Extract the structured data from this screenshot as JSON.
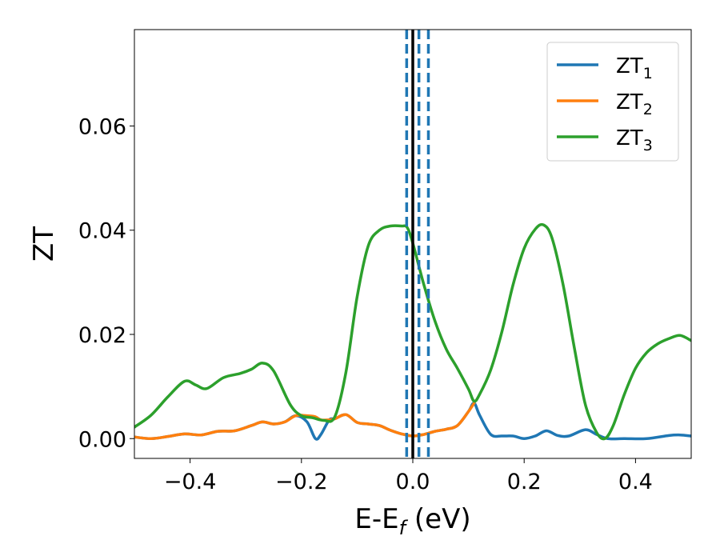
{
  "chart_data": {
    "type": "line",
    "title": "",
    "xlabel": "E-E",
    "xlabel_sub": "f",
    "xlabel_unit": " (eV)",
    "ylabel": "ZT",
    "xlim": [
      -0.5,
      0.5
    ],
    "ylim": [
      -0.0038,
      0.0785
    ],
    "xticks": [
      -0.4,
      -0.2,
      0.0,
      0.2,
      0.4
    ],
    "xtick_labels": [
      "−0.4",
      "−0.2",
      "0.0",
      "0.2",
      "0.4"
    ],
    "yticks": [
      0.0,
      0.02,
      0.04,
      0.06
    ],
    "ytick_labels": [
      "0.00",
      "0.02",
      "0.04",
      "0.06"
    ],
    "grid": false,
    "legend_position": "top-right",
    "vertical_lines": [
      {
        "x": 0.0,
        "color": "#000000",
        "style": "solid"
      },
      {
        "x": -0.011,
        "color": "#1f77b4",
        "style": "dashed"
      },
      {
        "x": 0.011,
        "color": "#1f77b4",
        "style": "dashed"
      },
      {
        "x": 0.028,
        "color": "#1f77b4",
        "style": "dashed"
      }
    ],
    "series": [
      {
        "name": "ZT",
        "name_sub": "1",
        "color": "#1f77b4",
        "x": [
          -0.5,
          -0.47,
          -0.44,
          -0.41,
          -0.38,
          -0.35,
          -0.32,
          -0.29,
          -0.27,
          -0.25,
          -0.23,
          -0.21,
          -0.19,
          -0.175,
          -0.165,
          -0.15,
          -0.14,
          -0.12,
          -0.1,
          -0.08,
          -0.06,
          -0.04,
          -0.02,
          0.0,
          0.02,
          0.04,
          0.06,
          0.08,
          0.1,
          0.11,
          0.12,
          0.14,
          0.16,
          0.18,
          0.2,
          0.22,
          0.24,
          0.26,
          0.28,
          0.31,
          0.33,
          0.35,
          0.38,
          0.42,
          0.46,
          0.48,
          0.5
        ],
        "y": [
          0.0003,
          0.0,
          0.0004,
          0.0009,
          0.0007,
          0.0014,
          0.0015,
          0.0025,
          0.0032,
          0.0028,
          0.0032,
          0.0044,
          0.0032,
          0.0,
          0.0008,
          0.0036,
          0.0038,
          0.0046,
          0.0031,
          0.0028,
          0.0025,
          0.0016,
          0.0009,
          0.0005,
          0.0008,
          0.0014,
          0.0018,
          0.0025,
          0.0052,
          0.0068,
          0.0045,
          0.0008,
          0.0005,
          0.0005,
          0.0,
          0.0005,
          0.0015,
          0.0006,
          0.0005,
          0.0017,
          0.0008,
          0.0,
          0.0,
          0.0,
          0.0006,
          0.0007,
          0.0005
        ]
      },
      {
        "name": "ZT",
        "name_sub": "2",
        "color": "#ff7f0e",
        "x": [
          -0.5,
          -0.47,
          -0.44,
          -0.41,
          -0.38,
          -0.35,
          -0.32,
          -0.29,
          -0.27,
          -0.25,
          -0.23,
          -0.21,
          -0.19,
          -0.175,
          -0.165,
          -0.15,
          -0.14,
          -0.12,
          -0.1,
          -0.08,
          -0.06,
          -0.04,
          -0.02,
          0.0,
          0.02,
          0.04,
          0.06,
          0.08,
          0.1,
          0.11
        ],
        "y": [
          0.0003,
          0.0,
          0.0004,
          0.0009,
          0.0007,
          0.0014,
          0.0015,
          0.0025,
          0.0032,
          0.0028,
          0.0032,
          0.0044,
          0.0044,
          0.0042,
          0.0036,
          0.0036,
          0.0038,
          0.0046,
          0.0031,
          0.0028,
          0.0025,
          0.0016,
          0.0009,
          0.0005,
          0.0008,
          0.0014,
          0.0018,
          0.0025,
          0.0052,
          0.0068
        ]
      },
      {
        "name": "ZT",
        "name_sub": "3",
        "color": "#2ca02c",
        "x": [
          -0.5,
          -0.47,
          -0.44,
          -0.41,
          -0.39,
          -0.37,
          -0.34,
          -0.31,
          -0.29,
          -0.27,
          -0.25,
          -0.22,
          -0.2,
          -0.18,
          -0.16,
          -0.14,
          -0.12,
          -0.1,
          -0.08,
          -0.06,
          -0.04,
          -0.02,
          -0.01,
          0.0,
          0.02,
          0.04,
          0.06,
          0.08,
          0.1,
          0.11,
          0.12,
          0.14,
          0.16,
          0.18,
          0.2,
          0.22,
          0.235,
          0.25,
          0.27,
          0.29,
          0.31,
          0.33,
          0.345,
          0.36,
          0.38,
          0.4,
          0.42,
          0.44,
          0.46,
          0.48,
          0.5
        ],
        "y": [
          0.0022,
          0.0045,
          0.008,
          0.011,
          0.0103,
          0.0096,
          0.0117,
          0.0125,
          0.0133,
          0.0145,
          0.013,
          0.0065,
          0.0044,
          0.004,
          0.0035,
          0.0042,
          0.0128,
          0.0272,
          0.037,
          0.04,
          0.0408,
          0.0408,
          0.0405,
          0.0375,
          0.0295,
          0.0225,
          0.0172,
          0.0135,
          0.0095,
          0.0072,
          0.0085,
          0.0132,
          0.0205,
          0.0295,
          0.0365,
          0.0402,
          0.041,
          0.0385,
          0.0295,
          0.0175,
          0.0065,
          0.0012,
          0.0,
          0.0025,
          0.0085,
          0.0135,
          0.0165,
          0.0182,
          0.0192,
          0.0198,
          0.0188
        ]
      }
    ]
  }
}
